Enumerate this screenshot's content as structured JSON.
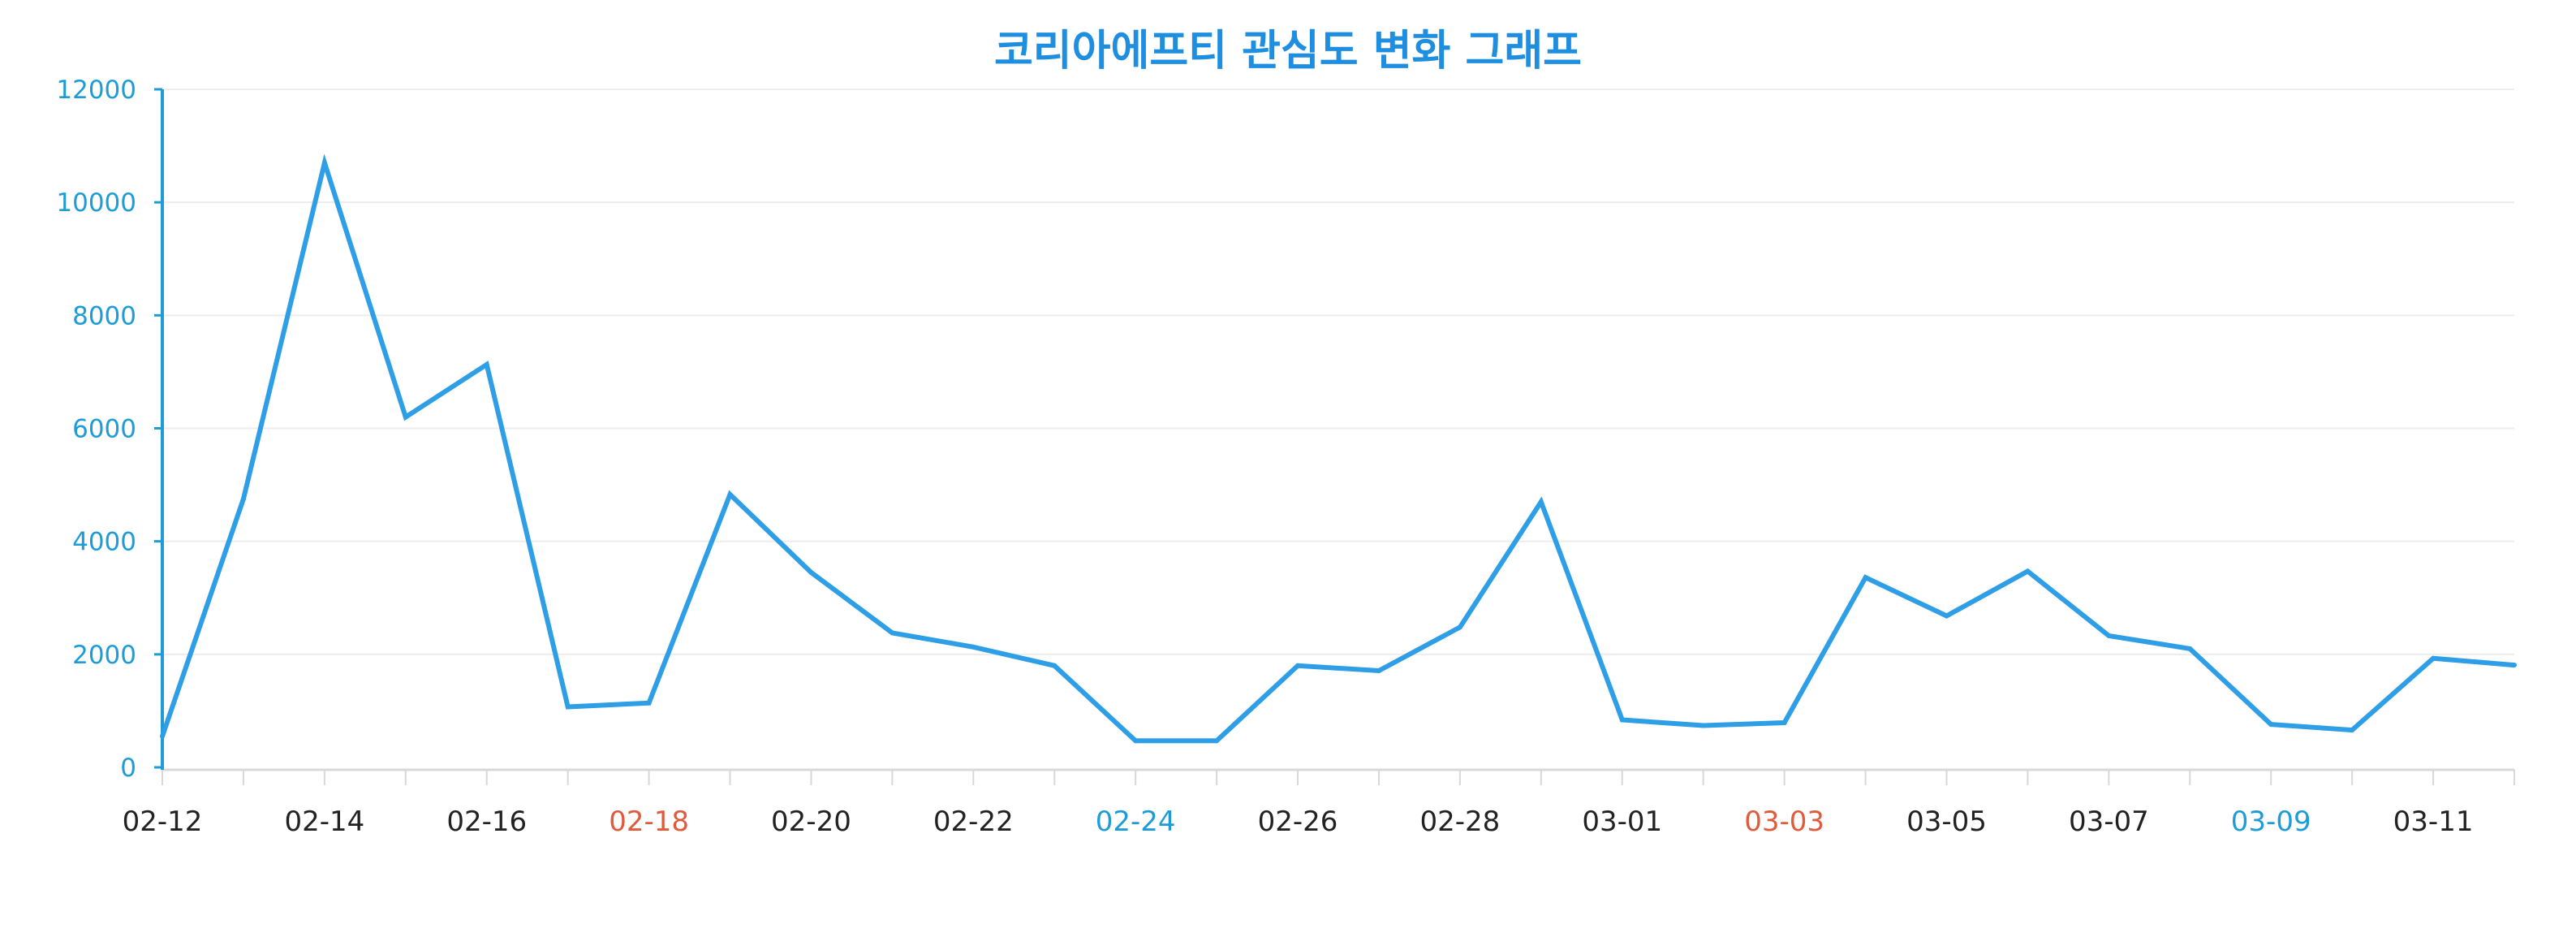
{
  "chart_data": {
    "type": "line",
    "title": "코리아에프티 관심도 변화 그래프",
    "xlabel": "",
    "ylabel": "",
    "ylim": [
      0,
      12000
    ],
    "yticks": [
      0,
      2000,
      4000,
      6000,
      8000,
      10000,
      12000
    ],
    "grid": true,
    "legend": "none",
    "x": [
      "02-12",
      "02-13",
      "02-14",
      "02-15",
      "02-16",
      "02-17",
      "02-18",
      "02-19",
      "02-20",
      "02-21",
      "02-22",
      "02-23",
      "02-24",
      "02-25",
      "02-26",
      "02-27",
      "02-28",
      "02-29",
      "03-01",
      "03-02",
      "03-03",
      "03-04",
      "03-05",
      "03-06",
      "03-07",
      "03-08",
      "03-09",
      "03-10",
      "03-11",
      "03-12"
    ],
    "xtick_labels": [
      {
        "label": "02-12",
        "color": "#222222"
      },
      {
        "label": "02-14",
        "color": "#222222"
      },
      {
        "label": "02-16",
        "color": "#222222"
      },
      {
        "label": "02-18",
        "color": "#e05a3c"
      },
      {
        "label": "02-20",
        "color": "#222222"
      },
      {
        "label": "02-22",
        "color": "#222222"
      },
      {
        "label": "02-24",
        "color": "#1e9cd7"
      },
      {
        "label": "02-26",
        "color": "#222222"
      },
      {
        "label": "02-28",
        "color": "#222222"
      },
      {
        "label": "03-01",
        "color": "#222222"
      },
      {
        "label": "03-03",
        "color": "#e05a3c"
      },
      {
        "label": "03-05",
        "color": "#222222"
      },
      {
        "label": "03-07",
        "color": "#222222"
      },
      {
        "label": "03-09",
        "color": "#1e9cd7"
      },
      {
        "label": "03-11",
        "color": "#222222"
      }
    ],
    "series": [
      {
        "values": [
          550,
          4750,
          10700,
          6200,
          7130,
          1070,
          1140,
          4830,
          3450,
          2380,
          2130,
          1800,
          470,
          470,
          1800,
          1710,
          2480,
          4700,
          840,
          740,
          790,
          3360,
          2680,
          3470,
          2330,
          2100,
          760,
          660,
          1930,
          1810
        ]
      }
    ],
    "colors": {
      "title": "#1e8ee0",
      "line": "#2e9fe6",
      "axis": "#1e9cd7",
      "ytick": "#1e9cd7",
      "grid": "#ececec",
      "xaxis": "#d8d8d8"
    }
  }
}
